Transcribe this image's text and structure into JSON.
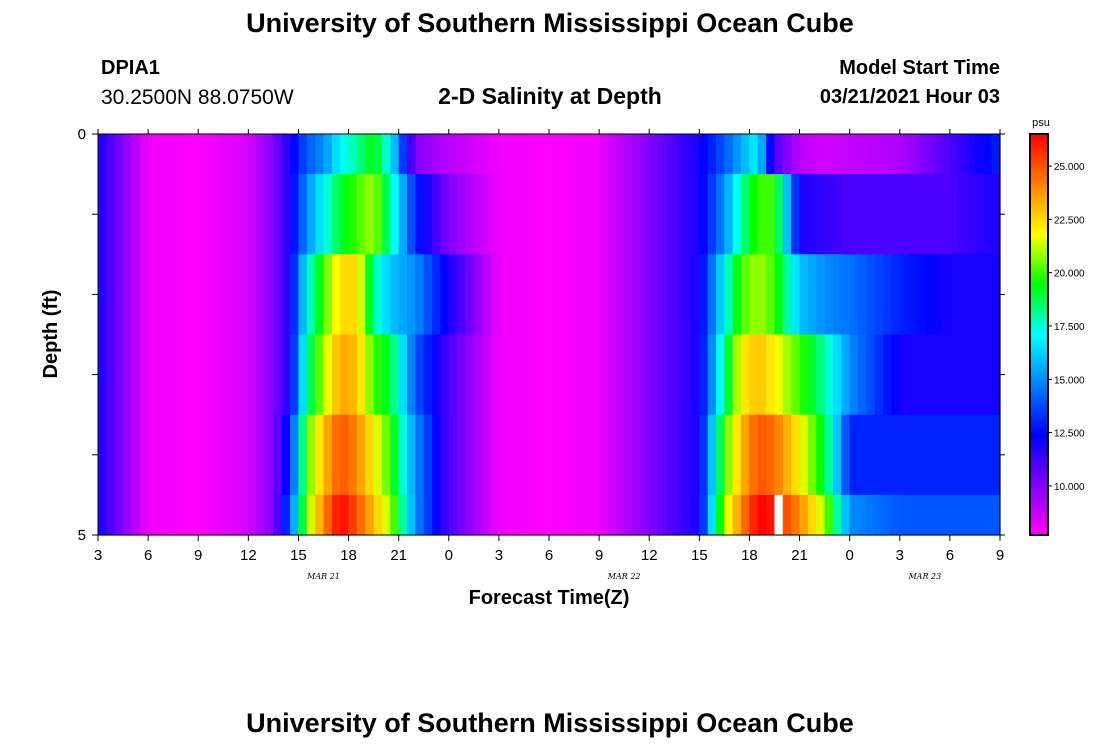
{
  "header": {
    "title": "University of Southern Mississippi Ocean Cube",
    "station_id": "DPIA1",
    "station_coords": "30.2500N 88.0750W",
    "plot_title": "2-D Salinity at Depth",
    "model_start_label": "Model Start Time",
    "model_start_value": "03/21/2021 Hour 03"
  },
  "footer": {
    "title": "University of Southern Mississippi Ocean Cube"
  },
  "chart_data": {
    "type": "heatmap",
    "title": "2-D Salinity at Depth",
    "xlabel": "Forecast Time(Z)",
    "ylabel": "Depth (ft)",
    "x_tick_labels": [
      "3",
      "6",
      "9",
      "12",
      "15",
      "18",
      "21",
      "0",
      "3",
      "6",
      "9",
      "12",
      "15",
      "18",
      "21",
      "0",
      "3",
      "6",
      "9"
    ],
    "date_labels": [
      {
        "text": "MAR 21",
        "after_tick": 4
      },
      {
        "text": "MAR 22",
        "after_tick": 10
      },
      {
        "text": "MAR 23",
        "after_tick": 16
      }
    ],
    "y_tick_labels": [
      {
        "value": 0,
        "text": "0"
      },
      {
        "value": 1,
        "text": ""
      },
      {
        "value": 2,
        "text": ""
      },
      {
        "value": 3,
        "text": ""
      },
      {
        "value": 4,
        "text": ""
      },
      {
        "value": 5,
        "text": "5"
      }
    ],
    "x_range_hours": [
      0,
      54
    ],
    "y_range": [
      0,
      5
    ],
    "depth_layers": [
      0,
      0.5,
      1.5,
      2.5,
      3.5,
      4.5
    ],
    "colorbar": {
      "unit": "psu",
      "range": [
        7.7,
        26.5
      ],
      "tick_labels": [
        "10.000",
        "12.500",
        "15.000",
        "17.500",
        "20.000",
        "22.500",
        "25.000"
      ],
      "tick_values": [
        10,
        12.5,
        15,
        17.5,
        20,
        22.5,
        25
      ],
      "stops": [
        "#ff00ff",
        "#8000ff",
        "#0000ff",
        "#0080ff",
        "#00ffff",
        "#00ff00",
        "#ffff00",
        "#ff8000",
        "#ff0000"
      ]
    },
    "series": [
      {
        "depth": 0,
        "times": [
          0,
          3,
          6,
          9,
          10.5,
          11.5,
          12.5,
          13.5,
          14.5,
          15.5,
          16.5,
          17.5,
          19,
          21,
          24,
          27,
          30,
          33,
          36,
          37.5,
          38.5,
          39.5,
          40.5,
          42,
          43.5,
          45,
          48,
          51,
          54
        ],
        "values": [
          12,
          8,
          7.7,
          8.5,
          10,
          12,
          14,
          15,
          17,
          18,
          19.5,
          17,
          10,
          9,
          8,
          7.7,
          8,
          10,
          12,
          14,
          15.5,
          17,
          11,
          9,
          8.5,
          8.8,
          9.2,
          11,
          13
        ]
      },
      {
        "depth": 1,
        "times": [
          0,
          3,
          6,
          9,
          10.5,
          11.5,
          12.5,
          13.5,
          14.5,
          15.5,
          16.5,
          17.5,
          19,
          21,
          24,
          27,
          30,
          33,
          36,
          37.5,
          38.5,
          39.5,
          40.5,
          42,
          43.5,
          45,
          48,
          51,
          54
        ],
        "values": [
          12,
          8,
          7.7,
          8.5,
          10,
          12,
          15,
          17,
          19,
          20,
          21,
          18,
          13,
          10,
          8,
          7.7,
          8,
          10,
          12,
          15,
          18,
          20,
          20,
          12,
          11.5,
          11,
          11,
          11,
          12
        ]
      },
      {
        "depth": 2,
        "times": [
          0,
          3,
          6,
          9,
          10.5,
          11.5,
          12.5,
          13.5,
          14.5,
          15.5,
          16.5,
          17.5,
          19,
          21,
          24,
          27,
          30,
          33,
          36,
          37.5,
          38.5,
          39.5,
          40.5,
          42,
          43.5,
          45,
          48,
          51,
          54
        ],
        "values": [
          12,
          8,
          7.7,
          8.5,
          10,
          12,
          17,
          20,
          22.5,
          22.5,
          18,
          16,
          15,
          12,
          8,
          7.7,
          8,
          10,
          12,
          17,
          20,
          21,
          20,
          16,
          15,
          14.5,
          13,
          12,
          12
        ]
      },
      {
        "depth": 3,
        "times": [
          0,
          3,
          6,
          9,
          10.5,
          11.5,
          12.5,
          13.5,
          14.5,
          15.5,
          16.5,
          17.5,
          19,
          21,
          24,
          27,
          30,
          33,
          36,
          37.5,
          38.5,
          39.5,
          40.5,
          42,
          43.5,
          45,
          48,
          51,
          54
        ],
        "values": [
          12,
          8,
          7.7,
          8.5,
          10,
          12,
          18,
          21,
          23.5,
          23,
          20,
          19,
          14,
          11,
          8,
          7.7,
          8,
          10,
          12,
          18,
          22,
          23,
          22,
          20,
          18,
          15,
          12,
          12,
          12
        ]
      },
      {
        "depth": 4,
        "times": [
          0,
          3,
          6,
          9,
          10.5,
          11.5,
          12.5,
          13.5,
          14.5,
          15.5,
          16.5,
          17.5,
          19,
          21,
          24,
          27,
          30,
          33,
          36,
          37.5,
          38.5,
          39.5,
          40.5,
          42,
          43.5,
          45,
          48,
          51,
          54
        ],
        "values": [
          12,
          8,
          7.7,
          8.5,
          10,
          13,
          20,
          23,
          25,
          24,
          22,
          20,
          15,
          11,
          8,
          7.7,
          8,
          10,
          12,
          20,
          23,
          25,
          24.5,
          22,
          19,
          13,
          13,
          13,
          13
        ]
      },
      {
        "depth": 5,
        "times": [
          0,
          3,
          6,
          9,
          10.5,
          11.5,
          12.5,
          13.5,
          14.5,
          15.5,
          16.5,
          17.5,
          19,
          21,
          24,
          27,
          30,
          33,
          36,
          37.5,
          38.5,
          39.5,
          40.5,
          42,
          43.5,
          45,
          48,
          51,
          54
        ],
        "values": [
          12,
          8,
          7.7,
          8.5,
          10,
          14,
          20.5,
          24,
          26.5,
          25,
          23,
          21,
          15,
          11,
          8,
          7.7,
          8,
          10,
          12,
          21,
          24,
          26.5,
          26,
          24,
          21,
          15,
          14,
          14,
          14
        ]
      }
    ],
    "missing_segments": [
      {
        "depth": 5,
        "x_from": 40.5,
        "x_to": 41
      }
    ]
  }
}
